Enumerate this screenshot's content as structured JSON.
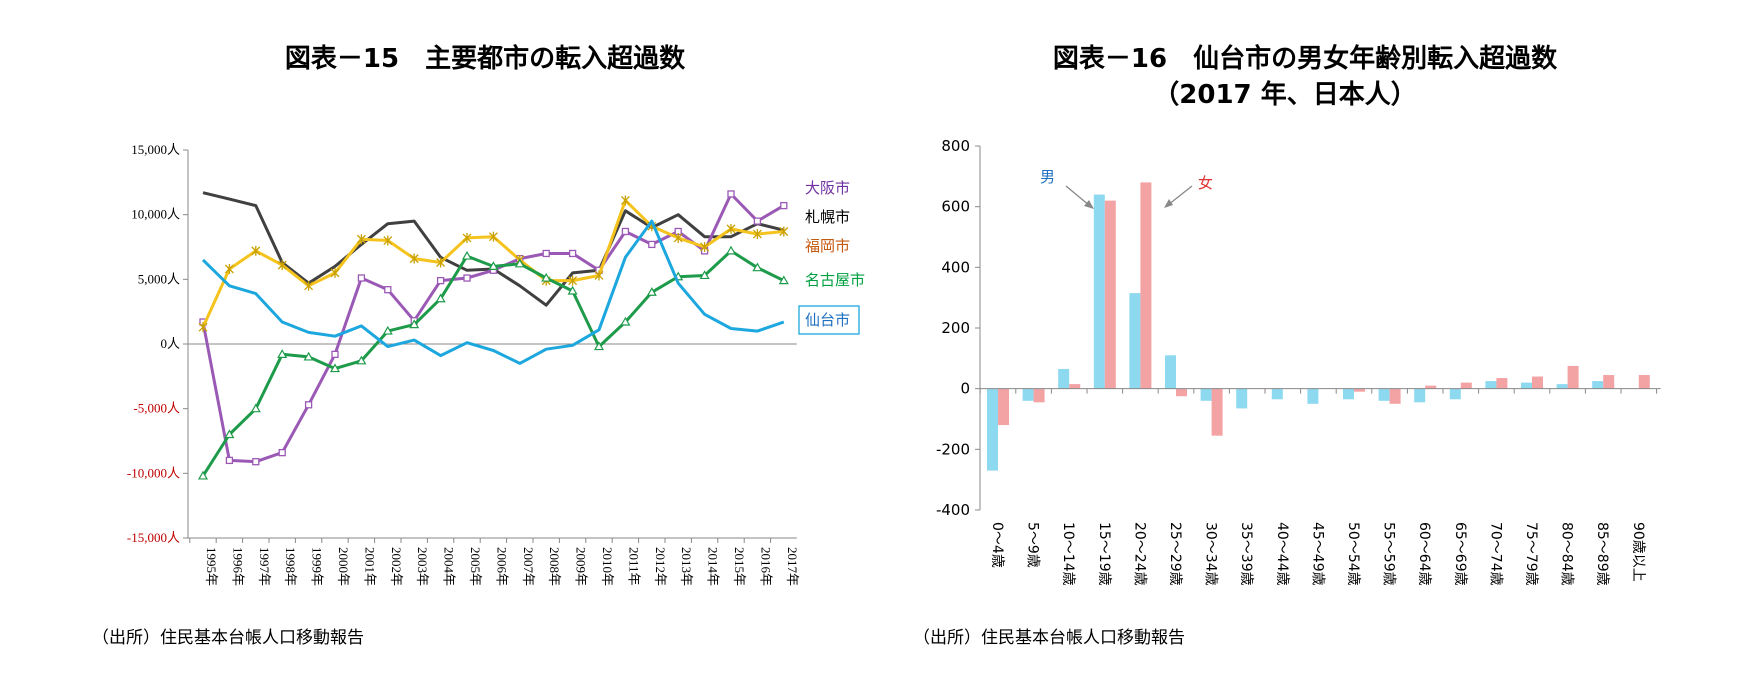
{
  "chart_data": [
    {
      "type": "line",
      "title": "図表－15　主要都市の転入超過数",
      "source": "（出所）住民基本台帳人口移動報告",
      "ylim": [
        -15000,
        15000
      ],
      "yticks": [
        {
          "value": 15000,
          "label": "15,000人",
          "color": "#000000"
        },
        {
          "value": 10000,
          "label": "10,000人",
          "color": "#000000"
        },
        {
          "value": 5000,
          "label": "5,000人",
          "color": "#000000"
        },
        {
          "value": 0,
          "label": "0人",
          "color": "#000000"
        },
        {
          "value": -5000,
          "label": "-5,000人",
          "color": "#C00000"
        },
        {
          "value": -10000,
          "label": "-10,000人",
          "color": "#C00000"
        },
        {
          "value": -15000,
          "label": "-15,000人",
          "color": "#C00000"
        }
      ],
      "categories": [
        "1995年",
        "1996年",
        "1997年",
        "1998年",
        "1999年",
        "2000年",
        "2001年",
        "2002年",
        "2003年",
        "2004年",
        "2005年",
        "2006年",
        "2007年",
        "2008年",
        "2009年",
        "2010年",
        "2011年",
        "2012年",
        "2013年",
        "2014年",
        "2015年",
        "2016年",
        "2017年"
      ],
      "series": [
        {
          "name": "札幌市",
          "color": "#404040",
          "marker": "none",
          "label_color": "#000000",
          "values": [
            11700,
            11200,
            10700,
            6300,
            4700,
            6000,
            7700,
            9300,
            9500,
            6700,
            5700,
            5800,
            4500,
            3000,
            5500,
            5700,
            10300,
            9000,
            10000,
            8300,
            8300,
            9300,
            8800
          ]
        },
        {
          "name": "大阪市",
          "color": "#9B59B6",
          "marker": "square",
          "label_color": "#7030A0",
          "values": [
            1700,
            -9000,
            -9100,
            -8400,
            -4700,
            -800,
            5100,
            4200,
            1800,
            4900,
            5100,
            5700,
            6600,
            7000,
            7000,
            5700,
            8700,
            7700,
            8700,
            7200,
            11600,
            9500,
            10700
          ]
        },
        {
          "name": "福岡市",
          "color": "#F5C31D",
          "marker": "star",
          "label_color": "#C55A11",
          "values": [
            1300,
            5800,
            7200,
            6100,
            4500,
            5500,
            8100,
            8000,
            6600,
            6300,
            8200,
            8300,
            6500,
            4900,
            4900,
            5300,
            11100,
            9100,
            8200,
            7500,
            8900,
            8500,
            8700
          ]
        },
        {
          "name": "名古屋市",
          "color": "#1E9B4A",
          "marker": "triangle",
          "label_color": "#00A040",
          "values": [
            -10200,
            -7000,
            -5000,
            -800,
            -1000,
            -1900,
            -1300,
            1000,
            1500,
            3500,
            6800,
            6000,
            6200,
            5100,
            4100,
            -200,
            1700,
            4000,
            5200,
            5300,
            7200,
            5900,
            4900
          ]
        },
        {
          "name": "仙台市",
          "color": "#1CA7DE",
          "marker": "none",
          "label_color": "#1F70C1",
          "values": [
            6500,
            4500,
            3900,
            1700,
            900,
            600,
            1400,
            -200,
            300,
            -900,
            100,
            -500,
            -1500,
            -400,
            -100,
            1100,
            6700,
            9500,
            4700,
            2300,
            1200,
            1000,
            1700
          ]
        }
      ]
    },
    {
      "type": "bar",
      "title": "図表－16　仙台市の男女年齢別転入超過数",
      "subtitle": "（2017 年、日本人）",
      "source": "（出所）住民基本台帳人口移動報告",
      "ylim": [
        -400,
        800
      ],
      "yticks": [
        800,
        600,
        400,
        200,
        0,
        -200,
        -400
      ],
      "categories": [
        "0～4歳",
        "5～9歳",
        "10～14歳",
        "15～19歳",
        "20～24歳",
        "25～29歳",
        "30～34歳",
        "35～39歳",
        "40～44歳",
        "45～49歳",
        "50～54歳",
        "55～59歳",
        "60～64歳",
        "65～69歳",
        "70～74歳",
        "75～79歳",
        "80～84歳",
        "85～89歳",
        "90歳以上"
      ],
      "series": [
        {
          "name": "男",
          "color": "#8DD9F0",
          "label_color": "#1F70C1",
          "values": [
            -270,
            -40,
            65,
            640,
            315,
            110,
            -40,
            -65,
            -35,
            -50,
            -35,
            -40,
            -45,
            -35,
            25,
            20,
            15,
            25,
            0
          ]
        },
        {
          "name": "女",
          "color": "#F4A3A5",
          "label_color": "#E03030",
          "values": [
            -120,
            -45,
            15,
            620,
            680,
            -25,
            -155,
            0,
            0,
            0,
            -10,
            -50,
            10,
            20,
            35,
            40,
            75,
            45,
            45
          ]
        }
      ]
    }
  ]
}
